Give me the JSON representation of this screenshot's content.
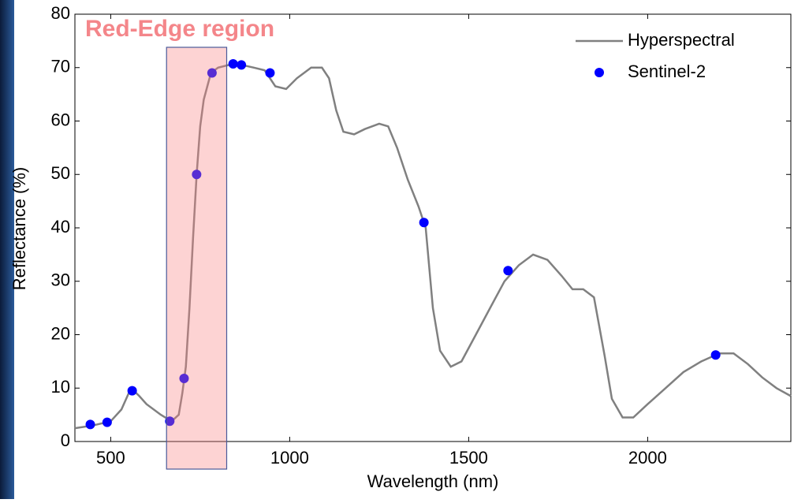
{
  "chart_data": {
    "type": "line",
    "xlabel": "Wavelength (nm)",
    "ylabel": "Reflectance (%)",
    "xlim": [
      400,
      2400
    ],
    "xticks": [
      500,
      1000,
      1500,
      2000
    ],
    "ylim": [
      0,
      80
    ],
    "yticks": [
      0,
      10,
      20,
      30,
      40,
      50,
      60,
      70,
      80
    ],
    "legend": "upper right",
    "highlight": {
      "label": "Red-Edge region",
      "x": [
        656,
        824
      ],
      "color": "#f4868a"
    },
    "series": [
      {
        "name": "Hyperspectral",
        "type": "line",
        "color": "#808080",
        "x": [
          400,
          450,
          500,
          530,
          550,
          560,
          580,
          600,
          640,
          670,
          690,
          700,
          710,
          720,
          730,
          740,
          750,
          760,
          780,
          800,
          830,
          860,
          900,
          930,
          960,
          990,
          1020,
          1060,
          1090,
          1110,
          1130,
          1150,
          1180,
          1210,
          1250,
          1275,
          1300,
          1330,
          1360,
          1380,
          1400,
          1420,
          1450,
          1480,
          1520,
          1560,
          1600,
          1640,
          1680,
          1720,
          1760,
          1790,
          1820,
          1850,
          1880,
          1900,
          1930,
          1960,
          2000,
          2050,
          2100,
          2150,
          2200,
          2240,
          2280,
          2320,
          2360,
          2400
        ],
        "values": [
          2.5,
          3,
          3.8,
          6,
          9,
          9.8,
          8.5,
          7,
          5,
          3.8,
          5,
          9,
          14,
          25,
          38,
          50,
          59,
          64,
          69,
          70,
          70.5,
          70.6,
          70,
          69.5,
          66.5,
          66,
          68,
          70,
          70,
          68,
          62,
          58,
          57.5,
          58.5,
          59.5,
          59,
          55,
          49,
          44,
          40,
          25,
          17,
          14,
          15,
          20,
          25,
          30,
          33,
          35,
          34,
          31,
          28.5,
          28.5,
          27,
          16,
          8,
          4.5,
          4.5,
          7,
          10,
          13,
          15,
          16.5,
          16.5,
          14.5,
          12,
          10,
          8.5
        ]
      },
      {
        "name": "Sentinel-2",
        "type": "scatter",
        "color": "#0000ff",
        "x": [
          443,
          490,
          560,
          665,
          705,
          740,
          783,
          842,
          865,
          945,
          1375,
          1610,
          2190
        ],
        "values": [
          3.2,
          3.6,
          9.5,
          3.8,
          11.8,
          50,
          69,
          70.7,
          70.5,
          69,
          41,
          32,
          16.2
        ]
      }
    ]
  }
}
